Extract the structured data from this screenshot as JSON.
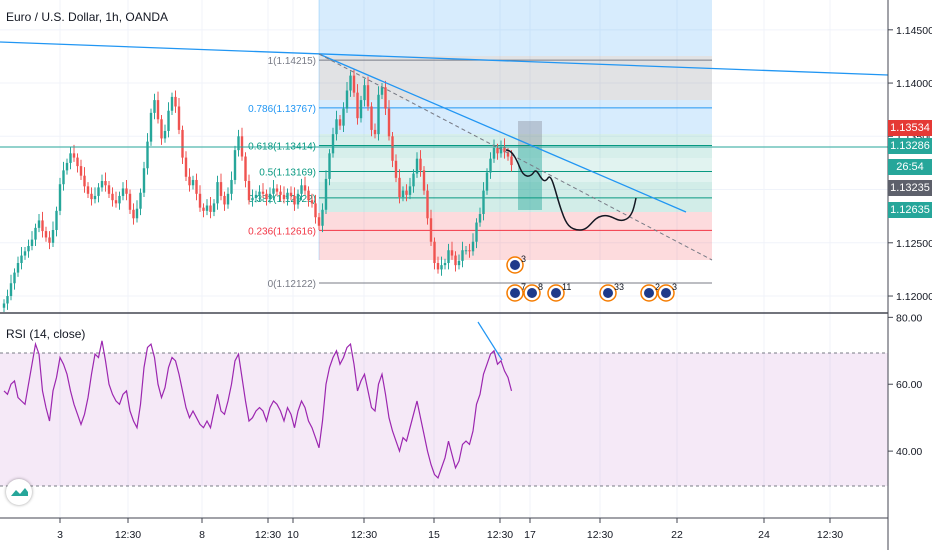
{
  "header": {
    "symbol_title": "Euro / U.S. Dollar, 1h, OANDA"
  },
  "rsi": {
    "title": "RSI (14, close)",
    "upper": 70,
    "lower": 30
  },
  "price_axis": {
    "ticks": [
      "1.14500",
      "1.14000",
      "1.13500",
      "1.13000",
      "1.12500",
      "1.12000"
    ],
    "tick_values": [
      1.145,
      1.14,
      1.135,
      1.13,
      1.125,
      1.12
    ],
    "range": [
      1.1185,
      1.1478
    ]
  },
  "rsi_axis": {
    "ticks": [
      "80.00",
      "60.00",
      "40.00"
    ],
    "tick_values": [
      80,
      60,
      40
    ],
    "range": [
      20,
      81
    ]
  },
  "time_axis": {
    "labels": [
      "3",
      "12:30",
      "8",
      "12:30",
      "10",
      "12:30",
      "15",
      "12:30",
      "17",
      "12:30",
      "22",
      "24",
      "12:30"
    ]
  },
  "price_tags": [
    {
      "label": "1.13534",
      "value": 1.13534,
      "color": "#e53935"
    },
    {
      "label": "1.13286",
      "value": 1.13286,
      "color": "#26a69a"
    },
    {
      "label": "26:54",
      "value": 1.1308,
      "color": "#26a69a"
    },
    {
      "label": "1.13235",
      "value": 1.13235,
      "color": "#5d606b"
    },
    {
      "label": "1.12635",
      "value": 1.12635,
      "color": "#26a69a"
    }
  ],
  "fib_levels": [
    {
      "label": "1(1.14215)",
      "value": 1.14215,
      "color": "#787b86"
    },
    {
      "label": "0.786(1.13767)",
      "value": 1.13767,
      "color": "#2196f3"
    },
    {
      "label": "0.618(1.13414)",
      "value": 1.13414,
      "color": "#089981"
    },
    {
      "label": "0.5(1.13169)",
      "value": 1.13169,
      "color": "#089981"
    },
    {
      "label": "0.382(1.12922)",
      "value": 1.12922,
      "color": "#089981"
    },
    {
      "label": "0.236(1.12616)",
      "value": 1.12616,
      "color": "#f23645"
    },
    {
      "label": "0(1.12122)",
      "value": 1.12122,
      "color": "#787b86"
    }
  ],
  "events": [
    {
      "label": "3"
    },
    {
      "label": "7"
    },
    {
      "label": "8"
    },
    {
      "label": "11"
    },
    {
      "label": "33"
    },
    {
      "label": "2"
    },
    {
      "label": "3"
    }
  ],
  "colors": {
    "up": "#26a69a",
    "down": "#ef5350",
    "rsi": "#9c27b0",
    "trend": "#2196f3"
  },
  "chart_data": {
    "type": "candlestick",
    "series": [
      {
        "name": "EURUSD 1h",
        "close": [
          1.1193,
          1.12,
          1.1212,
          1.1222,
          1.1231,
          1.1238,
          1.1242,
          1.1247,
          1.1253,
          1.1264,
          1.1271,
          1.1261,
          1.1255,
          1.125,
          1.1262,
          1.128,
          1.1305,
          1.1318,
          1.1325,
          1.1334,
          1.133,
          1.1322,
          1.1313,
          1.1303,
          1.1296,
          1.1291,
          1.1294,
          1.1302,
          1.1308,
          1.1304,
          1.1296,
          1.129,
          1.1287,
          1.1294,
          1.1301,
          1.1296,
          1.1281,
          1.1273,
          1.1282,
          1.1297,
          1.132,
          1.1345,
          1.1372,
          1.1384,
          1.1366,
          1.1348,
          1.1355,
          1.1374,
          1.1387,
          1.1378,
          1.1356,
          1.133,
          1.1312,
          1.1304,
          1.1309,
          1.1296,
          1.1283,
          1.128,
          1.1285,
          1.1279,
          1.1287,
          1.1307,
          1.1294,
          1.1286,
          1.1296,
          1.1309,
          1.1337,
          1.135,
          1.1331,
          1.1308,
          1.129,
          1.1292,
          1.1295,
          1.1298,
          1.1296,
          1.1291,
          1.1296,
          1.1301,
          1.1298,
          1.1295,
          1.1291,
          1.1297,
          1.1294,
          1.1286,
          1.1296,
          1.1304,
          1.1299,
          1.129,
          1.1287,
          1.1274,
          1.1266,
          1.1281,
          1.131,
          1.1334,
          1.1352,
          1.1366,
          1.136,
          1.1376,
          1.1393,
          1.1407,
          1.1391,
          1.1367,
          1.1384,
          1.1398,
          1.1378,
          1.1356,
          1.1352,
          1.1389,
          1.1396,
          1.1376,
          1.135,
          1.1327,
          1.1311,
          1.1293,
          1.1299,
          1.1295,
          1.1303,
          1.1315,
          1.1329,
          1.1318,
          1.1299,
          1.1273,
          1.1251,
          1.1231,
          1.1225,
          1.1229,
          1.1231,
          1.1243,
          1.1238,
          1.1229,
          1.1233,
          1.1243,
          1.1243,
          1.1242,
          1.1251,
          1.1269,
          1.1277,
          1.1299,
          1.1316,
          1.1329,
          1.1339,
          1.1334,
          1.134,
          1.1335,
          1.1331,
          1.1323
        ]
      },
      {
        "name": "RSI (14, close)",
        "values": [
          58,
          57,
          60,
          61,
          56,
          55,
          54,
          60,
          66,
          72,
          69,
          58,
          53,
          49,
          58,
          62,
          68,
          66,
          63,
          58,
          54,
          51,
          48,
          51,
          56,
          63,
          69,
          68,
          73,
          67,
          60,
          57,
          55,
          54,
          57,
          58,
          52,
          49,
          47,
          54,
          65,
          71,
          72,
          68,
          60,
          56,
          59,
          65,
          68,
          67,
          63,
          58,
          53,
          50,
          52,
          50,
          48,
          47,
          49,
          47,
          52,
          57,
          52,
          51,
          55,
          60,
          67,
          69,
          62,
          55,
          49,
          50,
          52,
          53,
          52,
          49,
          53,
          55,
          54,
          52,
          49,
          53,
          51,
          47,
          52,
          55,
          53,
          49,
          47,
          44,
          41,
          49,
          60,
          65,
          68,
          70,
          66,
          68,
          71,
          72,
          66,
          58,
          61,
          63,
          58,
          53,
          52,
          60,
          63,
          57,
          50,
          46,
          43,
          40,
          44,
          43,
          47,
          51,
          55,
          50,
          45,
          40,
          36,
          33,
          32,
          35,
          38,
          43,
          39,
          35,
          37,
          42,
          43,
          42,
          46,
          54,
          57,
          63,
          66,
          69,
          70,
          66,
          67,
          64,
          62,
          58
        ]
      }
    ],
    "ylim": [
      1.1185,
      1.1478
    ],
    "y_ticks": [
      1.12,
      1.125,
      1.13,
      1.135,
      1.14,
      1.145
    ],
    "x_tick_labels": [
      "3",
      "12:30",
      "8",
      "12:30",
      "10",
      "12:30",
      "15",
      "12:30",
      "17",
      "12:30",
      "22",
      "24",
      "12:30"
    ],
    "rsi_ylim": [
      20,
      81
    ],
    "rsi_ticks": [
      80,
      60,
      40
    ],
    "fibonacci": [
      {
        "level": "1",
        "value": 1.14215
      },
      {
        "level": "0.786",
        "value": 1.13767
      },
      {
        "level": "0.618",
        "value": 1.13414
      },
      {
        "level": "0.5",
        "value": 1.13169
      },
      {
        "level": "0.382",
        "value": 1.12922
      },
      {
        "level": "0.236",
        "value": 1.12616
      },
      {
        "level": "0",
        "value": 1.12122
      }
    ],
    "legend": "none"
  }
}
